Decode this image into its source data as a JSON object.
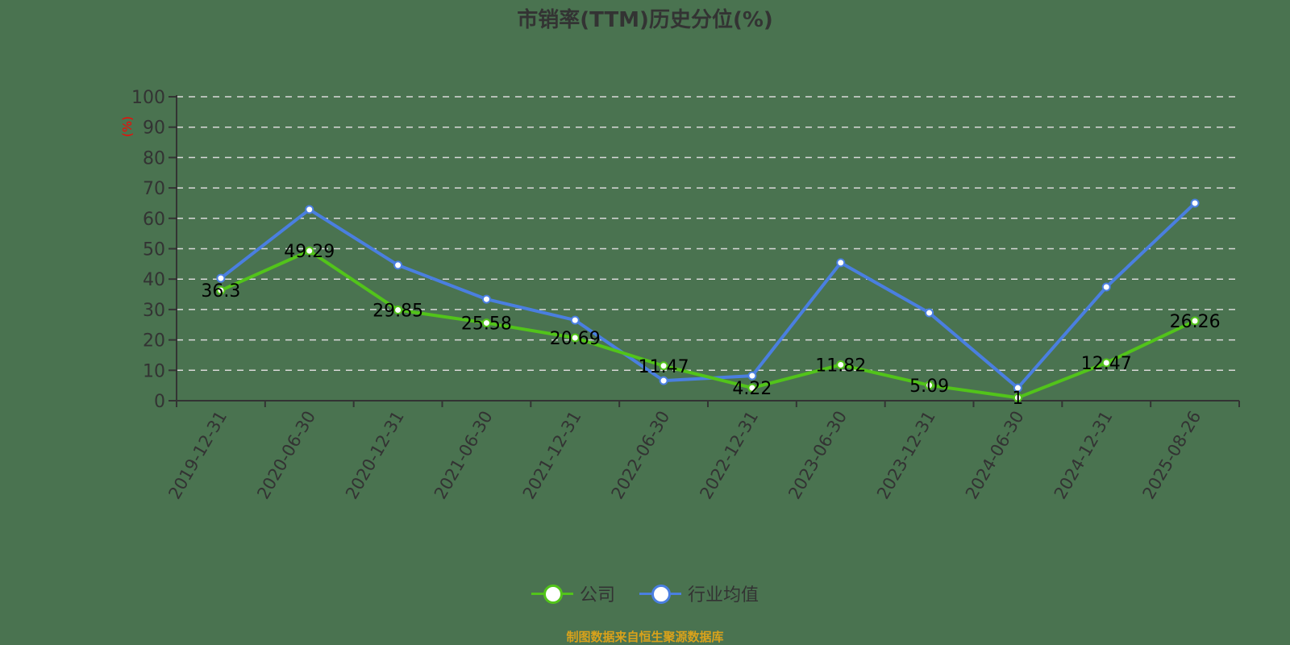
{
  "chart_data": {
    "type": "line",
    "title": "市销率(TTM)历史分位(%)",
    "xlabel": "",
    "ylabel": "(%)",
    "ylim": [
      0,
      100
    ],
    "yticks": [
      0,
      10,
      20,
      30,
      40,
      50,
      60,
      70,
      80,
      90,
      100
    ],
    "grid": true,
    "legend_position": "bottom",
    "categories": [
      "2019-12-31",
      "2020-06-30",
      "2020-12-31",
      "2021-06-30",
      "2021-12-31",
      "2022-06-30",
      "2022-12-31",
      "2023-06-30",
      "2023-12-31",
      "2024-06-30",
      "2024-12-31",
      "2025-08-26"
    ],
    "series": [
      {
        "name": "公司",
        "color": "#52c41a",
        "show_labels": true,
        "values": [
          36.3,
          49.29,
          29.85,
          25.58,
          20.69,
          11.47,
          4.22,
          11.82,
          5.09,
          1,
          12.47,
          26.26
        ]
      },
      {
        "name": "行业均值",
        "color": "#4a7fe0",
        "show_labels": false,
        "values": [
          40.3,
          62.9,
          44.6,
          33.4,
          26.5,
          6.6,
          8.2,
          45.4,
          28.9,
          4.2,
          37.4,
          65.0
        ]
      }
    ]
  },
  "legend": {
    "items": [
      {
        "label": "公司",
        "color": "#52c41a"
      },
      {
        "label": "行业均值",
        "color": "#4a7fe0"
      }
    ]
  },
  "footer": "制图数据来自恒生聚源数据库",
  "colors": {
    "background": "#4a7350",
    "axis": "#333333",
    "grid": "#d9d9d9",
    "ylabel": "#ff0000",
    "footer": "#d9a21b"
  }
}
